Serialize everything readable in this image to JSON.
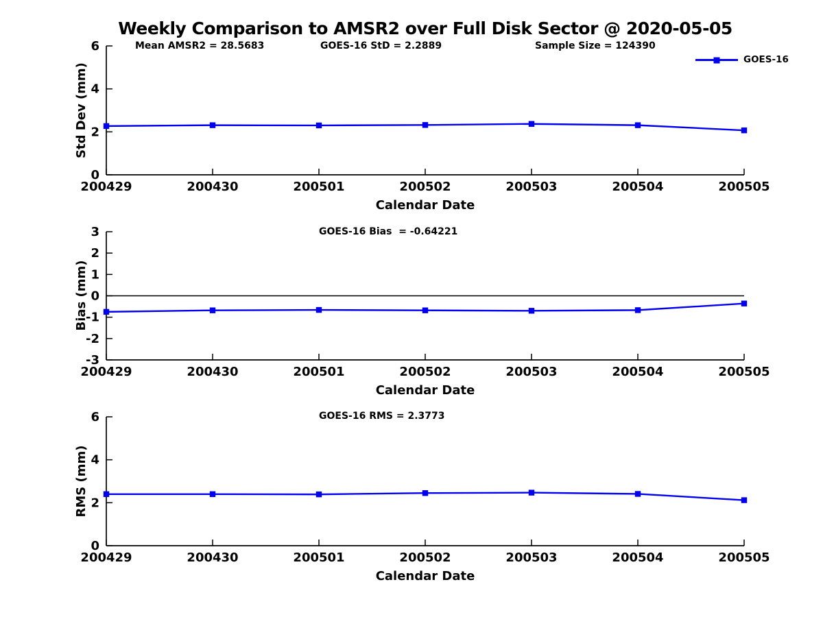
{
  "figure": {
    "title": "Weekly Comparison to AMSR2 over Full Disk Sector @ 2020-05-05",
    "background_color": "#ffffff",
    "line_color": "#0000ee",
    "axis_color": "#000000"
  },
  "legend": {
    "label": "GOES-16",
    "position": "top-right",
    "marker": "square"
  },
  "chart_data": [
    {
      "id": "stddev",
      "type": "line",
      "annotations": [
        "Mean AMSR2 = 28.5683",
        "GOES-16 StD = 2.2889",
        "Sample Size = 124390"
      ],
      "categories": [
        "200429",
        "200430",
        "200501",
        "200502",
        "200503",
        "200504",
        "200505"
      ],
      "series": [
        {
          "name": "GOES-16",
          "marker": "square",
          "values": [
            2.27,
            2.31,
            2.3,
            2.32,
            2.37,
            2.31,
            2.07
          ]
        }
      ],
      "xlabel": "Calendar Date",
      "ylabel": "Std Dev (mm)",
      "ylim": [
        0,
        6
      ],
      "yticks": [
        0,
        2,
        4,
        6
      ],
      "zero_line": false,
      "grid": false
    },
    {
      "id": "bias",
      "type": "line",
      "annotations": [
        "GOES-16 Bias  = -0.64221"
      ],
      "categories": [
        "200429",
        "200430",
        "200501",
        "200502",
        "200503",
        "200504",
        "200505"
      ],
      "series": [
        {
          "name": "GOES-16",
          "marker": "square",
          "values": [
            -0.75,
            -0.68,
            -0.66,
            -0.68,
            -0.7,
            -0.67,
            -0.36
          ]
        }
      ],
      "xlabel": "Calendar Date",
      "ylabel": "Bias (mm)",
      "ylim": [
        -3,
        3
      ],
      "yticks": [
        -3,
        -2,
        -1,
        0,
        1,
        2,
        3
      ],
      "zero_line": true,
      "grid": false
    },
    {
      "id": "rms",
      "type": "line",
      "annotations": [
        "GOES-16 RMS = 2.3773"
      ],
      "categories": [
        "200429",
        "200430",
        "200501",
        "200502",
        "200503",
        "200504",
        "200505"
      ],
      "series": [
        {
          "name": "GOES-16",
          "marker": "square",
          "values": [
            2.4,
            2.4,
            2.39,
            2.45,
            2.47,
            2.41,
            2.12
          ]
        }
      ],
      "xlabel": "Calendar Date",
      "ylabel": "RMS (mm)",
      "ylim": [
        0,
        6
      ],
      "yticks": [
        0,
        2,
        4,
        6
      ],
      "zero_line": false,
      "grid": false
    }
  ]
}
